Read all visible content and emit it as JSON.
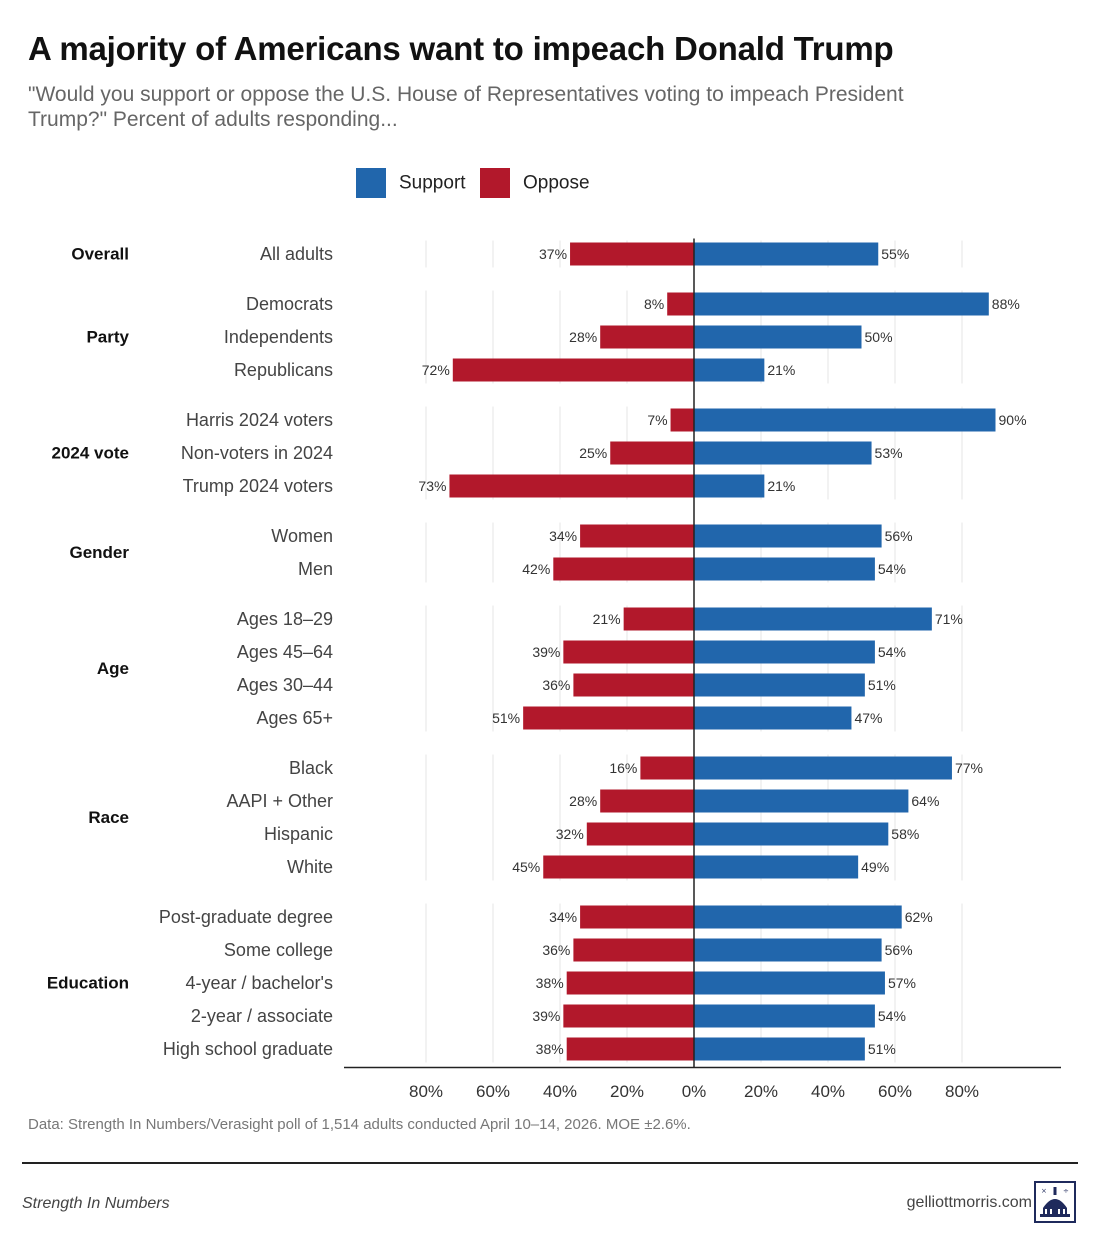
{
  "title": "A majority of Americans want to impeach Donald Trump",
  "subtitle": "\"Would you support or oppose the U.S. House of Representatives voting to impeach President Trump?\" Percent of adults responding...",
  "footer": {
    "source": "Data: Strength In Numbers/Verasight poll of 1,514 adults conducted April 10–14, 2026. MOE ±2.6%.",
    "brand": "Strength In Numbers",
    "site": "gelliottmorris.com"
  },
  "colors": {
    "support": "#2166ac",
    "oppose": "#b2182b"
  },
  "icons": {
    "logo": "capitol-dome-logo-icon"
  },
  "chart_data": {
    "type": "bar",
    "orientation": "horizontal-diverging",
    "legend": [
      "Support",
      "Oppose"
    ],
    "legend_position": "top",
    "grid": true,
    "xlim": [
      -100,
      100
    ],
    "x_ticks": [
      -80,
      -60,
      -40,
      -20,
      0,
      20,
      40,
      60,
      80
    ],
    "x_tick_labels": [
      "80%",
      "60%",
      "40%",
      "20%",
      "0%",
      "20%",
      "40%",
      "60%",
      "80%"
    ],
    "groups": [
      {
        "name": "Overall",
        "rows": [
          {
            "label": "All adults",
            "oppose": 37,
            "support": 55
          }
        ]
      },
      {
        "name": "Party",
        "rows": [
          {
            "label": "Democrats",
            "oppose": 8,
            "support": 88
          },
          {
            "label": "Independents",
            "oppose": 28,
            "support": 50
          },
          {
            "label": "Republicans",
            "oppose": 72,
            "support": 21
          }
        ]
      },
      {
        "name": "2024 vote",
        "rows": [
          {
            "label": "Harris 2024 voters",
            "oppose": 7,
            "support": 90
          },
          {
            "label": "Non-voters in 2024",
            "oppose": 25,
            "support": 53
          },
          {
            "label": "Trump 2024 voters",
            "oppose": 73,
            "support": 21
          }
        ]
      },
      {
        "name": "Gender",
        "rows": [
          {
            "label": "Women",
            "oppose": 34,
            "support": 56
          },
          {
            "label": "Men",
            "oppose": 42,
            "support": 54
          }
        ]
      },
      {
        "name": "Age",
        "rows": [
          {
            "label": "Ages 18–29",
            "oppose": 21,
            "support": 71
          },
          {
            "label": "Ages 45–64",
            "oppose": 39,
            "support": 54
          },
          {
            "label": "Ages 30–44",
            "oppose": 36,
            "support": 51
          },
          {
            "label": "Ages 65+",
            "oppose": 51,
            "support": 47
          }
        ]
      },
      {
        "name": "Race",
        "rows": [
          {
            "label": "Black",
            "oppose": 16,
            "support": 77
          },
          {
            "label": "AAPI + Other",
            "oppose": 28,
            "support": 64
          },
          {
            "label": "Hispanic",
            "oppose": 32,
            "support": 58
          },
          {
            "label": "White",
            "oppose": 45,
            "support": 49
          }
        ]
      },
      {
        "name": "Education",
        "rows": [
          {
            "label": "Post-graduate degree",
            "oppose": 34,
            "support": 62
          },
          {
            "label": "Some college",
            "oppose": 36,
            "support": 56
          },
          {
            "label": "4-year / bachelor's",
            "oppose": 38,
            "support": 57
          },
          {
            "label": "2-year / associate",
            "oppose": 39,
            "support": 54
          },
          {
            "label": "High school graduate",
            "oppose": 38,
            "support": 51
          }
        ]
      }
    ]
  }
}
